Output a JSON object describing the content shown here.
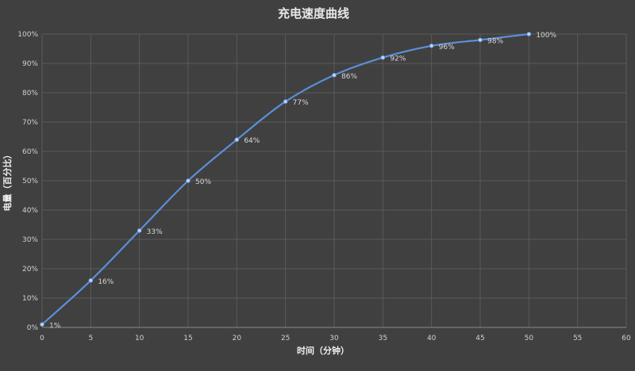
{
  "chart_data": {
    "type": "line",
    "title": "充电速度曲线",
    "xlabel": "时间（分钟）",
    "ylabel": "电量（百分比）",
    "xlim": [
      0,
      60
    ],
    "ylim": [
      0,
      100
    ],
    "x_ticks": [
      0,
      5,
      10,
      15,
      20,
      25,
      30,
      35,
      40,
      45,
      50,
      55,
      60
    ],
    "y_ticks": [
      "0%",
      "10%",
      "20%",
      "30%",
      "40%",
      "50%",
      "60%",
      "70%",
      "80%",
      "90%",
      "100%"
    ],
    "grid": true,
    "smooth": true,
    "series": [
      {
        "name": "",
        "color": "#5b8fd8",
        "x": [
          0,
          5,
          10,
          15,
          20,
          25,
          30,
          35,
          40,
          45,
          50
        ],
        "values": [
          1,
          16,
          33,
          50,
          64,
          77,
          86,
          92,
          96,
          98,
          100
        ],
        "labels": [
          "1%",
          "16%",
          "33%",
          "50%",
          "64%",
          "77%",
          "86%",
          "92%",
          "96%",
          "98%",
          "100%"
        ]
      }
    ]
  }
}
